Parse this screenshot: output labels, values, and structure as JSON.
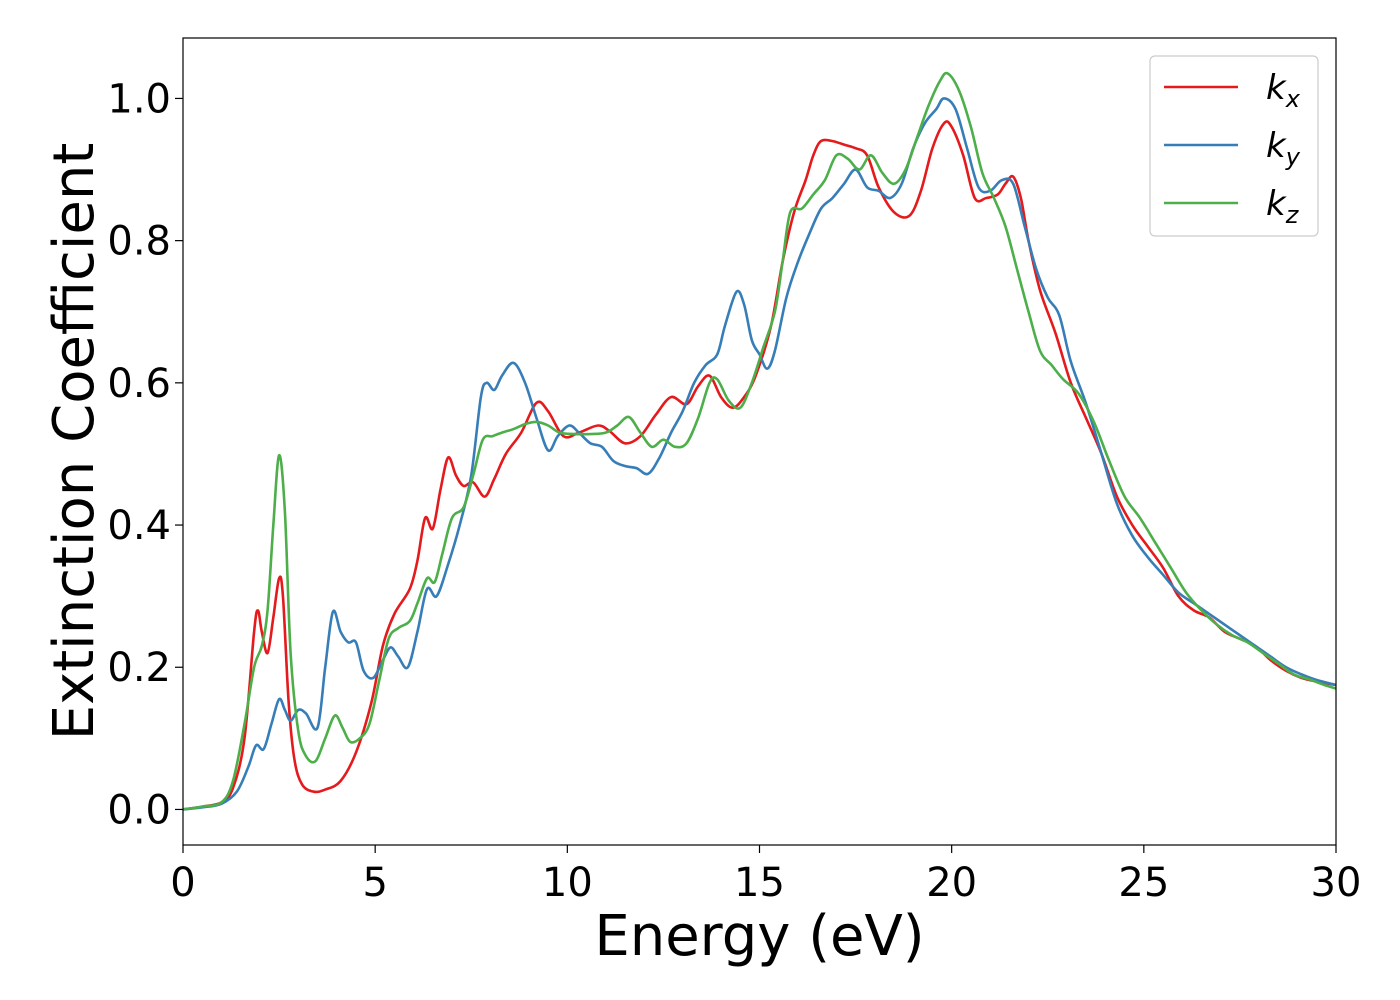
{
  "chart_data": {
    "type": "line",
    "xlabel": "Energy (eV)",
    "ylabel": "Extinction Coefficient",
    "xlim": [
      0,
      30
    ],
    "ylim": [
      -0.05,
      1.085
    ],
    "xticks": [
      0,
      5,
      10,
      15,
      20,
      25,
      30
    ],
    "xtick_labels": [
      "0",
      "5",
      "10",
      "15",
      "20",
      "25",
      "30"
    ],
    "yticks": [
      0.0,
      0.2,
      0.4,
      0.6,
      0.8,
      1.0
    ],
    "ytick_labels": [
      "0.0",
      "0.2",
      "0.4",
      "0.6",
      "0.8",
      "1.0"
    ],
    "grid": false,
    "legend_position": "top-right",
    "series": [
      {
        "name": "k",
        "subscript": "x",
        "color": "#e41a1c",
        "points": [
          [
            0,
            0
          ],
          [
            0.5,
            0.004
          ],
          [
            1.0,
            0.01
          ],
          [
            1.3,
            0.03
          ],
          [
            1.6,
            0.1
          ],
          [
            1.85,
            0.25
          ],
          [
            1.95,
            0.28
          ],
          [
            2.05,
            0.25
          ],
          [
            2.2,
            0.22
          ],
          [
            2.35,
            0.27
          ],
          [
            2.5,
            0.325
          ],
          [
            2.6,
            0.3
          ],
          [
            2.75,
            0.15
          ],
          [
            2.9,
            0.07
          ],
          [
            3.1,
            0.035
          ],
          [
            3.4,
            0.025
          ],
          [
            3.7,
            0.028
          ],
          [
            4.1,
            0.04
          ],
          [
            4.5,
            0.08
          ],
          [
            4.9,
            0.15
          ],
          [
            5.2,
            0.23
          ],
          [
            5.5,
            0.275
          ],
          [
            5.9,
            0.31
          ],
          [
            6.1,
            0.35
          ],
          [
            6.3,
            0.41
          ],
          [
            6.5,
            0.395
          ],
          [
            6.7,
            0.45
          ],
          [
            6.9,
            0.495
          ],
          [
            7.1,
            0.47
          ],
          [
            7.3,
            0.455
          ],
          [
            7.55,
            0.46
          ],
          [
            7.85,
            0.44
          ],
          [
            8.1,
            0.465
          ],
          [
            8.4,
            0.5
          ],
          [
            8.8,
            0.53
          ],
          [
            9.2,
            0.572
          ],
          [
            9.5,
            0.56
          ],
          [
            9.9,
            0.525
          ],
          [
            10.3,
            0.53
          ],
          [
            10.8,
            0.54
          ],
          [
            11.1,
            0.532
          ],
          [
            11.5,
            0.515
          ],
          [
            11.9,
            0.525
          ],
          [
            12.3,
            0.555
          ],
          [
            12.7,
            0.58
          ],
          [
            13.1,
            0.57
          ],
          [
            13.4,
            0.595
          ],
          [
            13.7,
            0.61
          ],
          [
            14.0,
            0.58
          ],
          [
            14.3,
            0.565
          ],
          [
            14.6,
            0.58
          ],
          [
            14.9,
            0.61
          ],
          [
            15.3,
            0.68
          ],
          [
            15.6,
            0.77
          ],
          [
            15.9,
            0.84
          ],
          [
            16.2,
            0.885
          ],
          [
            16.4,
            0.92
          ],
          [
            16.6,
            0.94
          ],
          [
            16.9,
            0.94
          ],
          [
            17.2,
            0.935
          ],
          [
            17.5,
            0.93
          ],
          [
            17.8,
            0.92
          ],
          [
            18.1,
            0.875
          ],
          [
            18.5,
            0.84
          ],
          [
            18.9,
            0.835
          ],
          [
            19.2,
            0.87
          ],
          [
            19.5,
            0.93
          ],
          [
            19.8,
            0.965
          ],
          [
            20.0,
            0.96
          ],
          [
            20.3,
            0.92
          ],
          [
            20.6,
            0.86
          ],
          [
            20.9,
            0.86
          ],
          [
            21.2,
            0.865
          ],
          [
            21.4,
            0.88
          ],
          [
            21.6,
            0.89
          ],
          [
            21.8,
            0.86
          ],
          [
            22.0,
            0.8
          ],
          [
            22.3,
            0.73
          ],
          [
            22.7,
            0.67
          ],
          [
            23.1,
            0.6
          ],
          [
            23.5,
            0.55
          ],
          [
            23.9,
            0.5
          ],
          [
            24.3,
            0.44
          ],
          [
            24.7,
            0.4
          ],
          [
            25.1,
            0.37
          ],
          [
            25.5,
            0.34
          ],
          [
            25.9,
            0.3
          ],
          [
            26.3,
            0.28
          ],
          [
            26.7,
            0.27
          ],
          [
            27.1,
            0.25
          ],
          [
            27.5,
            0.24
          ],
          [
            27.9,
            0.23
          ],
          [
            28.3,
            0.21
          ],
          [
            28.7,
            0.195
          ],
          [
            29.1,
            0.185
          ],
          [
            29.5,
            0.18
          ],
          [
            30,
            0.175
          ]
        ]
      },
      {
        "name": "k",
        "subscript": "y",
        "color": "#377eb8",
        "points": [
          [
            0,
            0
          ],
          [
            0.5,
            0.003
          ],
          [
            1.0,
            0.008
          ],
          [
            1.4,
            0.025
          ],
          [
            1.7,
            0.06
          ],
          [
            1.9,
            0.09
          ],
          [
            2.1,
            0.085
          ],
          [
            2.3,
            0.12
          ],
          [
            2.5,
            0.155
          ],
          [
            2.65,
            0.14
          ],
          [
            2.8,
            0.125
          ],
          [
            3.0,
            0.14
          ],
          [
            3.2,
            0.135
          ],
          [
            3.5,
            0.115
          ],
          [
            3.7,
            0.2
          ],
          [
            3.9,
            0.278
          ],
          [
            4.1,
            0.25
          ],
          [
            4.3,
            0.235
          ],
          [
            4.5,
            0.235
          ],
          [
            4.7,
            0.195
          ],
          [
            4.95,
            0.185
          ],
          [
            5.2,
            0.21
          ],
          [
            5.4,
            0.228
          ],
          [
            5.6,
            0.215
          ],
          [
            5.85,
            0.2
          ],
          [
            6.1,
            0.25
          ],
          [
            6.35,
            0.31
          ],
          [
            6.6,
            0.3
          ],
          [
            6.9,
            0.345
          ],
          [
            7.2,
            0.4
          ],
          [
            7.5,
            0.47
          ],
          [
            7.75,
            0.58
          ],
          [
            7.9,
            0.6
          ],
          [
            8.1,
            0.59
          ],
          [
            8.3,
            0.61
          ],
          [
            8.6,
            0.628
          ],
          [
            8.9,
            0.6
          ],
          [
            9.2,
            0.55
          ],
          [
            9.5,
            0.505
          ],
          [
            9.75,
            0.525
          ],
          [
            10.05,
            0.54
          ],
          [
            10.3,
            0.53
          ],
          [
            10.6,
            0.515
          ],
          [
            10.9,
            0.51
          ],
          [
            11.2,
            0.49
          ],
          [
            11.5,
            0.483
          ],
          [
            11.8,
            0.48
          ],
          [
            12.1,
            0.472
          ],
          [
            12.4,
            0.495
          ],
          [
            12.7,
            0.53
          ],
          [
            13.0,
            0.56
          ],
          [
            13.3,
            0.6
          ],
          [
            13.6,
            0.625
          ],
          [
            13.9,
            0.64
          ],
          [
            14.1,
            0.68
          ],
          [
            14.4,
            0.728
          ],
          [
            14.6,
            0.71
          ],
          [
            14.8,
            0.66
          ],
          [
            15.0,
            0.64
          ],
          [
            15.2,
            0.62
          ],
          [
            15.4,
            0.645
          ],
          [
            15.7,
            0.72
          ],
          [
            16.0,
            0.77
          ],
          [
            16.3,
            0.81
          ],
          [
            16.6,
            0.845
          ],
          [
            16.9,
            0.86
          ],
          [
            17.2,
            0.88
          ],
          [
            17.5,
            0.9
          ],
          [
            17.8,
            0.875
          ],
          [
            18.1,
            0.87
          ],
          [
            18.4,
            0.86
          ],
          [
            18.7,
            0.88
          ],
          [
            19.0,
            0.93
          ],
          [
            19.3,
            0.965
          ],
          [
            19.6,
            0.985
          ],
          [
            19.8,
            1.0
          ],
          [
            20.1,
            0.985
          ],
          [
            20.4,
            0.93
          ],
          [
            20.7,
            0.875
          ],
          [
            21.0,
            0.87
          ],
          [
            21.3,
            0.885
          ],
          [
            21.6,
            0.88
          ],
          [
            21.9,
            0.82
          ],
          [
            22.2,
            0.76
          ],
          [
            22.5,
            0.72
          ],
          [
            22.8,
            0.695
          ],
          [
            23.1,
            0.63
          ],
          [
            23.5,
            0.57
          ],
          [
            23.9,
            0.5
          ],
          [
            24.3,
            0.43
          ],
          [
            24.7,
            0.385
          ],
          [
            25.1,
            0.355
          ],
          [
            25.5,
            0.33
          ],
          [
            25.9,
            0.305
          ],
          [
            26.3,
            0.29
          ],
          [
            26.7,
            0.275
          ],
          [
            27.1,
            0.26
          ],
          [
            27.5,
            0.245
          ],
          [
            27.9,
            0.23
          ],
          [
            28.3,
            0.215
          ],
          [
            28.7,
            0.2
          ],
          [
            29.1,
            0.19
          ],
          [
            29.5,
            0.182
          ],
          [
            30,
            0.175
          ]
        ]
      },
      {
        "name": "k",
        "subscript": "z",
        "color": "#4daf4a",
        "points": [
          [
            0,
            0
          ],
          [
            0.5,
            0.004
          ],
          [
            1.0,
            0.01
          ],
          [
            1.3,
            0.04
          ],
          [
            1.6,
            0.12
          ],
          [
            1.85,
            0.2
          ],
          [
            2.05,
            0.23
          ],
          [
            2.2,
            0.28
          ],
          [
            2.35,
            0.4
          ],
          [
            2.5,
            0.498
          ],
          [
            2.65,
            0.42
          ],
          [
            2.8,
            0.22
          ],
          [
            3.0,
            0.11
          ],
          [
            3.2,
            0.075
          ],
          [
            3.45,
            0.068
          ],
          [
            3.7,
            0.1
          ],
          [
            3.95,
            0.132
          ],
          [
            4.15,
            0.115
          ],
          [
            4.35,
            0.095
          ],
          [
            4.6,
            0.1
          ],
          [
            4.85,
            0.12
          ],
          [
            5.1,
            0.18
          ],
          [
            5.35,
            0.24
          ],
          [
            5.6,
            0.255
          ],
          [
            5.9,
            0.265
          ],
          [
            6.1,
            0.29
          ],
          [
            6.35,
            0.325
          ],
          [
            6.55,
            0.32
          ],
          [
            6.75,
            0.36
          ],
          [
            7.0,
            0.41
          ],
          [
            7.3,
            0.425
          ],
          [
            7.55,
            0.47
          ],
          [
            7.8,
            0.52
          ],
          [
            8.05,
            0.525
          ],
          [
            8.3,
            0.53
          ],
          [
            8.6,
            0.535
          ],
          [
            8.9,
            0.542
          ],
          [
            9.2,
            0.545
          ],
          [
            9.5,
            0.54
          ],
          [
            9.8,
            0.53
          ],
          [
            10.2,
            0.528
          ],
          [
            10.6,
            0.528
          ],
          [
            11.0,
            0.53
          ],
          [
            11.3,
            0.54
          ],
          [
            11.6,
            0.552
          ],
          [
            11.9,
            0.53
          ],
          [
            12.2,
            0.51
          ],
          [
            12.5,
            0.52
          ],
          [
            12.8,
            0.51
          ],
          [
            13.1,
            0.515
          ],
          [
            13.4,
            0.55
          ],
          [
            13.7,
            0.6
          ],
          [
            13.9,
            0.605
          ],
          [
            14.2,
            0.575
          ],
          [
            14.5,
            0.565
          ],
          [
            14.8,
            0.6
          ],
          [
            15.1,
            0.65
          ],
          [
            15.4,
            0.7
          ],
          [
            15.6,
            0.77
          ],
          [
            15.8,
            0.84
          ],
          [
            16.1,
            0.845
          ],
          [
            16.4,
            0.865
          ],
          [
            16.7,
            0.885
          ],
          [
            17.0,
            0.92
          ],
          [
            17.3,
            0.915
          ],
          [
            17.6,
            0.9
          ],
          [
            17.9,
            0.92
          ],
          [
            18.2,
            0.895
          ],
          [
            18.5,
            0.88
          ],
          [
            18.8,
            0.9
          ],
          [
            19.1,
            0.945
          ],
          [
            19.4,
            0.99
          ],
          [
            19.7,
            1.025
          ],
          [
            19.9,
            1.035
          ],
          [
            20.2,
            1.01
          ],
          [
            20.5,
            0.96
          ],
          [
            20.8,
            0.895
          ],
          [
            21.1,
            0.86
          ],
          [
            21.4,
            0.82
          ],
          [
            21.7,
            0.76
          ],
          [
            22.0,
            0.7
          ],
          [
            22.3,
            0.645
          ],
          [
            22.6,
            0.625
          ],
          [
            22.9,
            0.605
          ],
          [
            23.3,
            0.585
          ],
          [
            23.7,
            0.545
          ],
          [
            24.1,
            0.49
          ],
          [
            24.5,
            0.44
          ],
          [
            24.9,
            0.41
          ],
          [
            25.3,
            0.375
          ],
          [
            25.7,
            0.34
          ],
          [
            26.1,
            0.305
          ],
          [
            26.5,
            0.28
          ],
          [
            26.9,
            0.26
          ],
          [
            27.3,
            0.245
          ],
          [
            27.7,
            0.235
          ],
          [
            28.1,
            0.22
          ],
          [
            28.5,
            0.205
          ],
          [
            28.9,
            0.19
          ],
          [
            29.3,
            0.183
          ],
          [
            29.7,
            0.175
          ],
          [
            30,
            0.17
          ]
        ]
      }
    ]
  }
}
